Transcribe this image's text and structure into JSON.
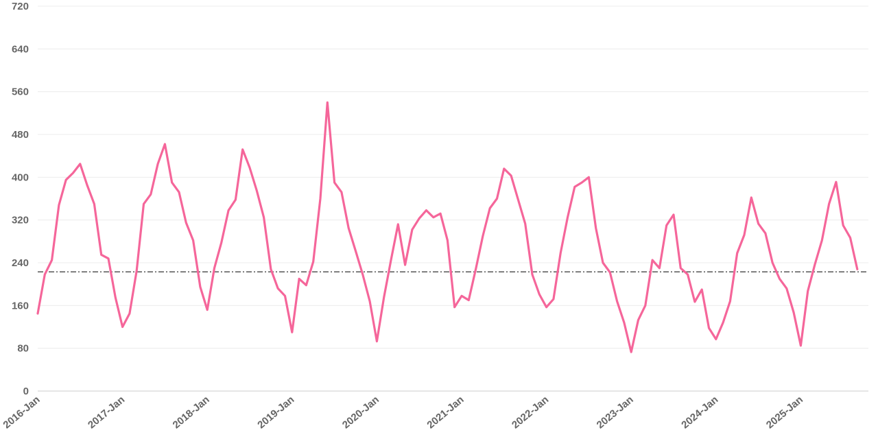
{
  "chart_data": {
    "type": "line",
    "title": "",
    "xlabel": "",
    "ylabel": "",
    "ylim": [
      0,
      720
    ],
    "yticks": [
      0,
      80,
      160,
      240,
      320,
      400,
      480,
      560,
      640,
      720
    ],
    "xtick_labels": [
      "2016-Jan",
      "2017-Jan",
      "2018-Jan",
      "2019-Jan",
      "2020-Jan",
      "2021-Jan",
      "2022-Jan",
      "2023-Jan",
      "2024-Jan",
      "2025-Jan"
    ],
    "grid": true,
    "reference_line": {
      "value": 223,
      "style": "dash-dot",
      "color": "#333333"
    },
    "series": [
      {
        "color": "#f5669a",
        "start": "2016-Jan",
        "frequency": "monthly",
        "values": [
          145,
          218,
          245,
          348,
          395,
          408,
          425,
          385,
          350,
          255,
          248,
          175,
          120,
          145,
          225,
          350,
          368,
          425,
          462,
          390,
          372,
          315,
          282,
          195,
          152,
          230,
          278,
          338,
          358,
          452,
          418,
          375,
          325,
          228,
          192,
          178,
          110,
          210,
          198,
          242,
          360,
          540,
          390,
          372,
          305,
          262,
          218,
          168,
          93,
          175,
          245,
          312,
          236,
          302,
          323,
          338,
          325,
          332,
          282,
          157,
          178,
          170,
          228,
          290,
          342,
          360,
          416,
          403,
          358,
          313,
          218,
          181,
          157,
          172,
          258,
          325,
          382,
          390,
          400,
          305,
          240,
          222,
          168,
          128,
          73,
          133,
          160,
          245,
          230,
          310,
          330,
          230,
          218,
          167,
          190,
          118,
          97,
          128,
          168,
          258,
          292,
          362,
          313,
          295,
          240,
          210,
          192,
          147,
          85,
          187,
          237,
          282,
          350,
          391,
          310,
          287,
          228
        ]
      }
    ]
  }
}
